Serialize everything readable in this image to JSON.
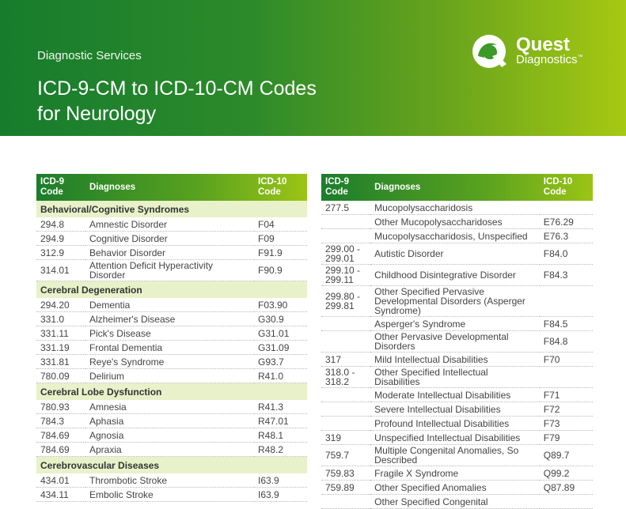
{
  "header": {
    "overline": "Diagnostic Services",
    "title_line1": "ICD-9-CM to ICD-10-CM Codes",
    "title_line2": "for Neurology",
    "logo": {
      "name": "Quest",
      "sub": "Diagnostics",
      "mark": "quest-q-logo-icon",
      "tm": "™"
    }
  },
  "table_headers": {
    "icd9": "ICD-9 Code",
    "diagnoses": "Diagnoses",
    "icd10": "ICD-10 Code"
  },
  "left_table": [
    {
      "cat": "Behavioral/Cognitive Syndromes"
    },
    {
      "icd9": "294.8",
      "dx": "Amnestic Disorder",
      "icd10": "F04"
    },
    {
      "icd9": "294.9",
      "dx": "Cognitive Disorder",
      "icd10": "F09"
    },
    {
      "icd9": "312.9",
      "dx": "Behavior Disorder",
      "icd10": "F91.9"
    },
    {
      "icd9": "314.01",
      "dx": "Attention Deficit Hyperactivity Disorder",
      "icd10": "F90.9",
      "tall": 2
    },
    {
      "cat": "Cerebral Degeneration"
    },
    {
      "icd9": "294.20",
      "dx": "Dementia",
      "icd10": "F03.90"
    },
    {
      "icd9": "331.0",
      "dx": "Alzheimer's Disease",
      "icd10": "G30.9"
    },
    {
      "icd9": "331.11",
      "dx": "Pick's Disease",
      "icd10": "G31.01"
    },
    {
      "icd9": "331.19",
      "dx": "Frontal Dementia",
      "icd10": "G31.09"
    },
    {
      "icd9": "331.81",
      "dx": "Reye's Syndrome",
      "icd10": "G93.7"
    },
    {
      "icd9": "780.09",
      "dx": "Delirium",
      "icd10": "R41.0"
    },
    {
      "cat": "Cerebral Lobe Dysfunction"
    },
    {
      "icd9": "780.93",
      "dx": "Amnesia",
      "icd10": "R41.3"
    },
    {
      "icd9": "784.3",
      "dx": "Aphasia",
      "icd10": "R47.01"
    },
    {
      "icd9": "784.69",
      "dx": "Agnosia",
      "icd10": "R48.1"
    },
    {
      "icd9": "784.69",
      "dx": "Apraxia",
      "icd10": "R48.2"
    },
    {
      "cat": "Cerebrovascular Diseases"
    },
    {
      "icd9": "434.01",
      "dx": "Thrombotic Stroke",
      "icd10": "I63.9"
    },
    {
      "icd9": "434.11",
      "dx": "Embolic Stroke",
      "icd10": "I63.9"
    }
  ],
  "right_table": [
    {
      "icd9": "277.5",
      "dx": "Mucopolysaccharidosis",
      "icd10": ""
    },
    {
      "icd9": "",
      "dx": "Other Mucopolysaccharidoses",
      "icd10": "E76.29"
    },
    {
      "icd9": "",
      "dx": "Mucopolysaccharidosis, Unspecified",
      "icd10": "E76.3"
    },
    {
      "icd9": "299.00 - 299.01",
      "dx": "Autistic Disorder",
      "icd10": "F84.0",
      "tall": 2
    },
    {
      "icd9": "299.10 - 299.11",
      "dx": "Childhood Disintegrative Disorder",
      "icd10": "F84.3",
      "tall": 2
    },
    {
      "icd9": "299.80 - 299.81",
      "dx": "Other Specified Pervasive Developmental Disorders (Asperger Syndrome)",
      "icd10": "",
      "tall": 3
    },
    {
      "icd9": "",
      "dx": "Asperger's Syndrome",
      "icd10": "F84.5"
    },
    {
      "icd9": "",
      "dx": "Other Pervasive Developmental Disorders",
      "icd10": "F84.8",
      "tall": 2
    },
    {
      "icd9": "317",
      "dx": "Mild Intellectual Disabilities",
      "icd10": "F70"
    },
    {
      "icd9": "318.0 - 318.2",
      "dx": "Other Specified Intellectual Disabilities",
      "icd10": "",
      "tall": 2
    },
    {
      "icd9": "",
      "dx": "Moderate Intellectual Disabilities",
      "icd10": "F71"
    },
    {
      "icd9": "",
      "dx": "Severe Intellectual Disabilities",
      "icd10": "F72"
    },
    {
      "icd9": "",
      "dx": "Profound Intellectual Disabilities",
      "icd10": "F73"
    },
    {
      "icd9": "319",
      "dx": "Unspecified Intellectual Disabilities",
      "icd10": "F79"
    },
    {
      "icd9": "759.7",
      "dx": "Multiple Congenital Anomalies, So Described",
      "icd10": "Q89.7",
      "tall": 2
    },
    {
      "icd9": "759.83",
      "dx": "Fragile X Syndrome",
      "icd10": "Q99.2"
    },
    {
      "icd9": "759.89",
      "dx": "Other Specified Anomalies",
      "icd10": "Q87.89"
    },
    {
      "icd9": "",
      "dx": "Other Specified Congenital",
      "icd10": ""
    }
  ]
}
